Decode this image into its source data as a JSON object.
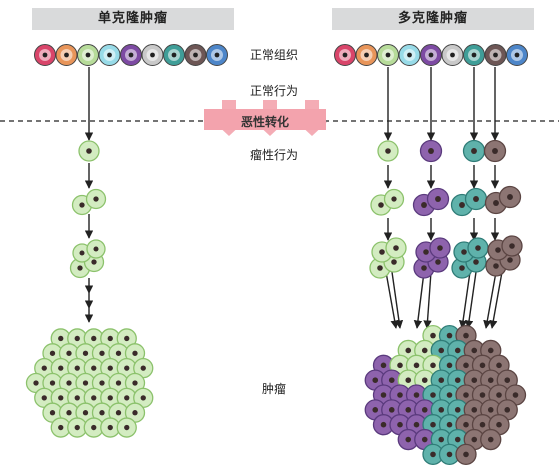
{
  "titles": {
    "monoclonal": "单克隆肿瘤",
    "polyclonal": "多克隆肿瘤"
  },
  "labels": {
    "normal_tissue": "正常组织",
    "normal_behavior": "正常行为",
    "malignant_transformation": "恶性转化",
    "tumor_behavior": "瘤性行为",
    "tumor": "肿瘤"
  },
  "colors": {
    "cell_colors": [
      "#d9456a",
      "#e8955a",
      "#b7dc9a",
      "#98dbe8",
      "#7d4aa3",
      "#c9c9c9",
      "#3f9e98",
      "#6d5655",
      "#4d86c9"
    ],
    "green_fill": "#d3ecc1",
    "green_stroke": "#8cc26c",
    "purple_fill": "#8e63ad",
    "purple_stroke": "#5a3a7d",
    "teal_fill": "#5fb2ab",
    "teal_stroke": "#2f7c77",
    "brown_fill": "#8c7573",
    "brown_stroke": "#5b4543",
    "nucleus": "#3a2b2a",
    "banner": "#f3a3ad",
    "header_bg": "#d9dadb"
  }
}
